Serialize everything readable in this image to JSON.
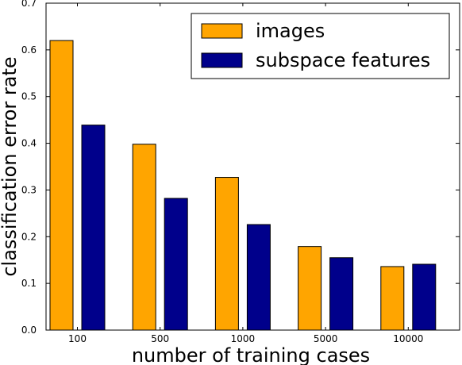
{
  "chart_data": {
    "type": "bar",
    "categories": [
      "100",
      "500",
      "1000",
      "5000",
      "10000"
    ],
    "series": [
      {
        "name": "images",
        "color": "#FFA500",
        "values": [
          0.62,
          0.398,
          0.327,
          0.179,
          0.136
        ]
      },
      {
        "name": "subspace features",
        "color": "#00008B",
        "values": [
          0.439,
          0.282,
          0.226,
          0.155,
          0.141
        ]
      }
    ],
    "title": "",
    "xlabel": "number of training cases",
    "ylabel": "classification error rate",
    "ylim": [
      0,
      0.7
    ],
    "yticks": [
      "0.0",
      "0.1",
      "0.2",
      "0.3",
      "0.4",
      "0.5",
      "0.6",
      "0.7"
    ],
    "grid": false,
    "legend_position": "top-right"
  }
}
